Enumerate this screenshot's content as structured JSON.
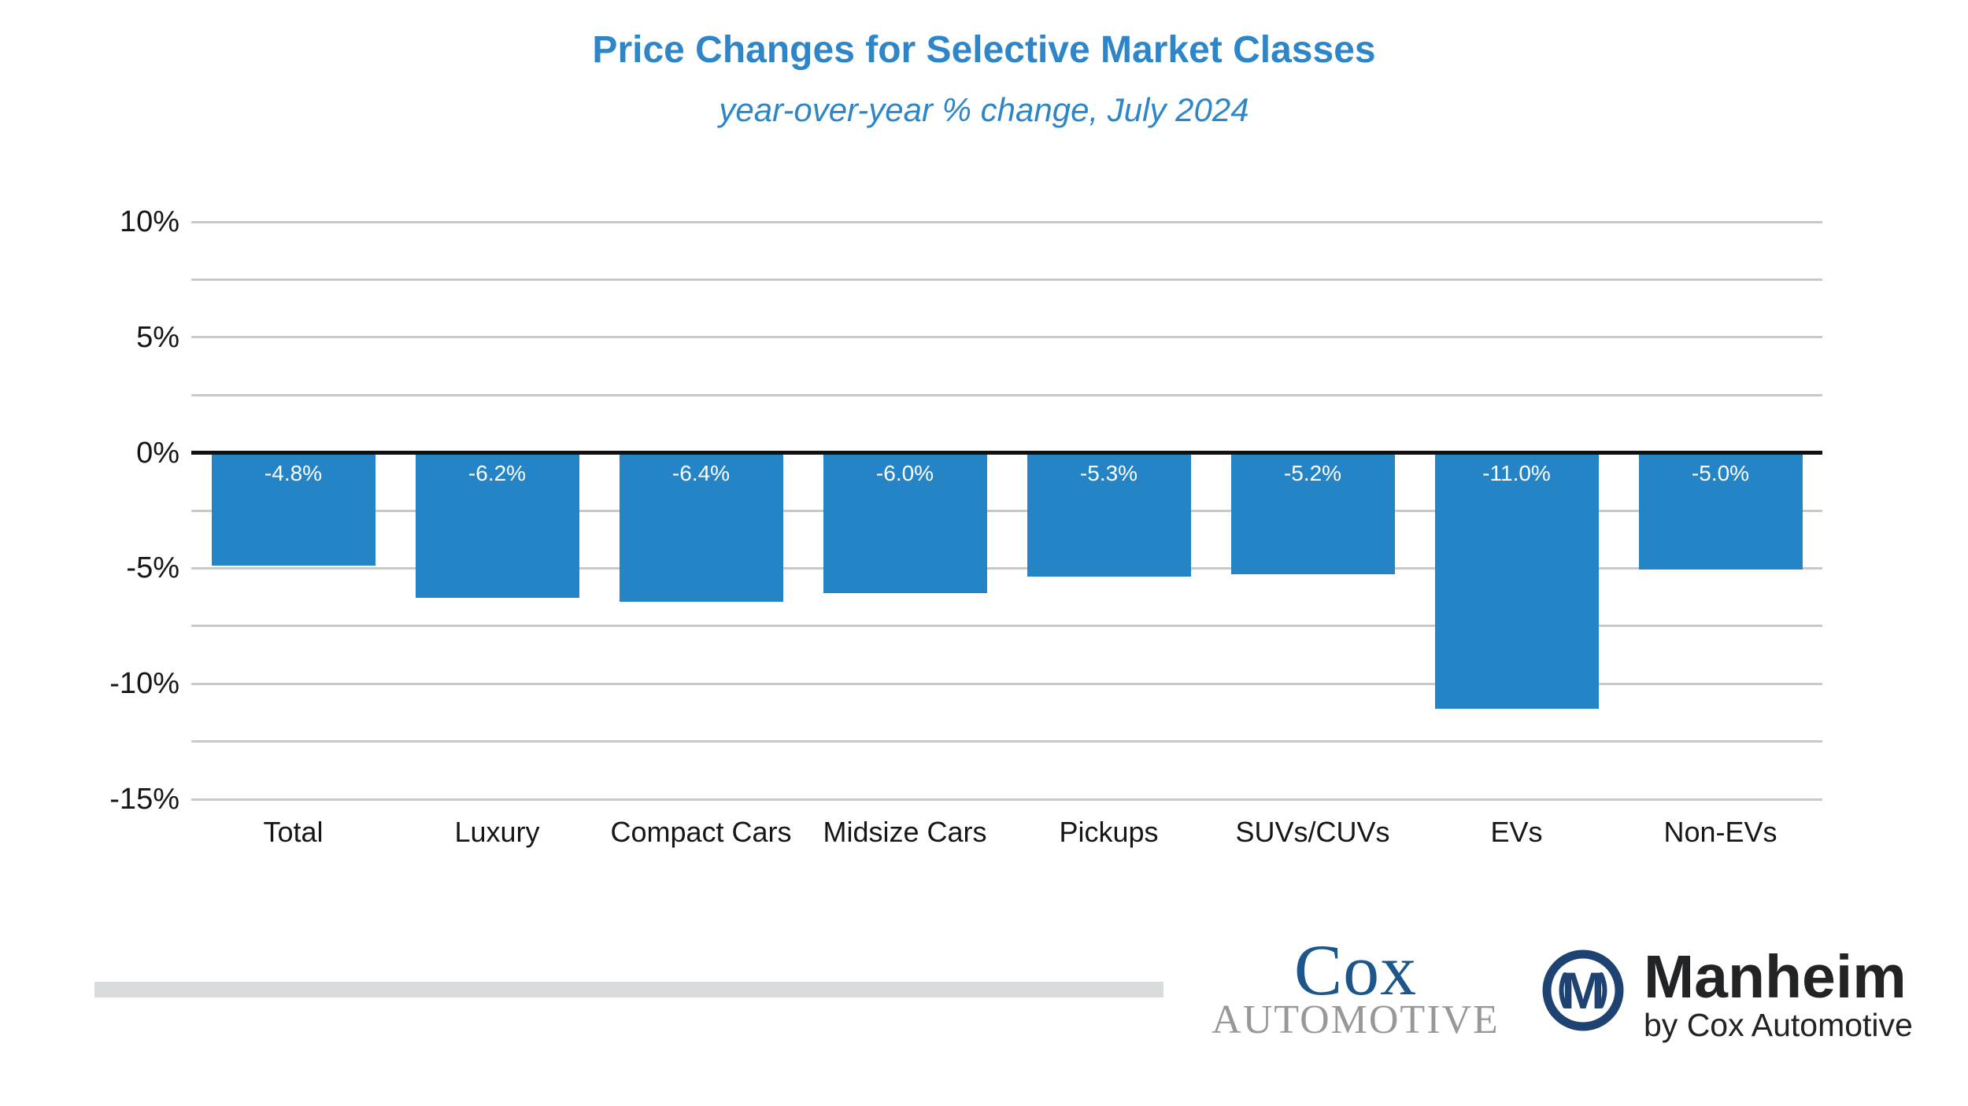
{
  "title": "Price Changes for Selective Market Classes",
  "subtitle": "year-over-year % change, July 2024",
  "chart_data": {
    "type": "bar",
    "title": "Price Changes for Selective Market Classes",
    "subtitle": "year-over-year % change, July 2024",
    "categories": [
      "Total",
      "Luxury",
      "Compact Cars",
      "Midsize Cars",
      "Pickups",
      "SUVs/CUVs",
      "EVs",
      "Non-EVs"
    ],
    "values": [
      -4.8,
      -6.2,
      -6.4,
      -6.0,
      -5.3,
      -5.2,
      -11.0,
      -5.0
    ],
    "value_labels": [
      "-4.8%",
      "-6.2%",
      "-6.4%",
      "-6.0%",
      "-5.3%",
      "-5.2%",
      "-11.0%",
      "-5.0%"
    ],
    "xlabel": "",
    "ylabel": "",
    "ylim": [
      -15,
      10
    ],
    "grid": true,
    "grid_step": 2.5,
    "legend_position": "none",
    "yticks": [
      {
        "value": 10,
        "label": "10%"
      },
      {
        "value": 5,
        "label": "5%"
      },
      {
        "value": 0,
        "label": "0%"
      },
      {
        "value": -5,
        "label": "-5%"
      },
      {
        "value": -10,
        "label": "-10%"
      },
      {
        "value": -15,
        "label": "-15%"
      }
    ],
    "bar_color": "#2484c6",
    "value_label_color": "#ffffff",
    "gridline_color": "#c9c9c9",
    "zero_line_color": "#111111",
    "title_color": "#2e86c8"
  },
  "footer": {
    "cox_logo": {
      "line1": "Cox",
      "line2": "AUTOMOTIVE",
      "word_color": "#1c568a",
      "sub_color": "#97989a"
    },
    "manheim_logo": {
      "name": "Manheim",
      "byline": "by Cox Automotive",
      "emblem_letter": "M",
      "emblem_color": "#1e4272",
      "text_color": "#222325"
    }
  }
}
